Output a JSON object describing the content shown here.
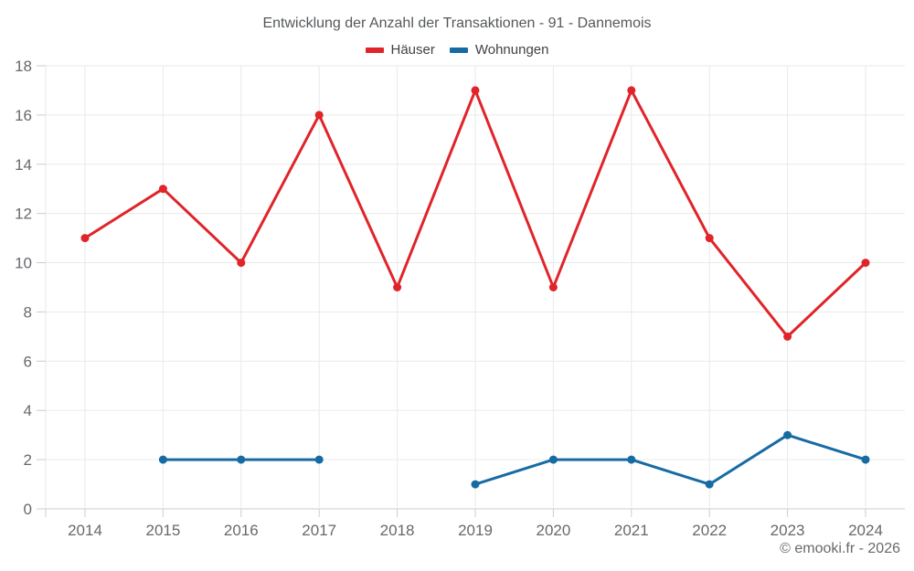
{
  "chart_data": {
    "type": "line",
    "title": "Entwicklung der Anzahl der Transaktionen - 91 - Dannemois",
    "categories": [
      "2014",
      "2015",
      "2016",
      "2017",
      "2018",
      "2019",
      "2020",
      "2021",
      "2022",
      "2023",
      "2024"
    ],
    "series": [
      {
        "name": "Häuser",
        "color": "#e02429",
        "values": [
          11,
          13,
          10,
          16,
          9,
          17,
          9,
          17,
          11,
          7,
          10
        ]
      },
      {
        "name": "Wohnungen",
        "color": "#176ba3",
        "values": [
          null,
          2,
          2,
          2,
          null,
          1,
          2,
          2,
          1,
          3,
          2
        ]
      }
    ],
    "xlabel": "",
    "ylabel": "",
    "ylim": [
      0,
      18
    ],
    "ytick_step": 2,
    "grid": true,
    "legend_position": "top"
  },
  "footer": {
    "copyright": "© emooki.fr - 2026"
  },
  "style": {
    "grid_color": "#eaeaea",
    "axis_color": "#cccccc",
    "tick_label_color": "#66696c",
    "point_radius": 4.5,
    "line_width": 3
  }
}
